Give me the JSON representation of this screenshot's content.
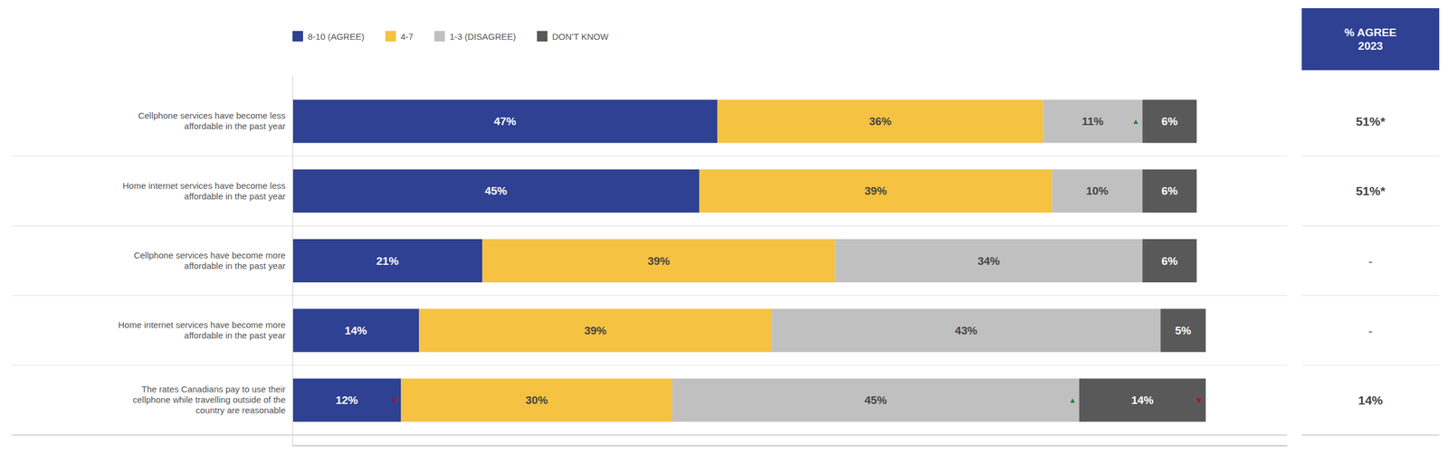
{
  "chart_data": {
    "type": "bar",
    "orientation": "horizontal",
    "stacked": true,
    "data_labels": true,
    "tick_labels": "y",
    "legend": "top",
    "categories": [
      "Cellphone services have become less\naffordable in the past year",
      "Home internet services have become less\naffordable in the past year",
      "Cellphone services have become more\naffordable in the past year",
      "Home internet services have become more\naffordable in the past year",
      "The rates Canadians pay to use their\ncellphone while travelling outside of the\ncountry are reasonable"
    ],
    "series": [
      {
        "name": "8-10 (AGREE)",
        "color": "#2e4192",
        "values": [
          47,
          45,
          21,
          14,
          12
        ],
        "value_labels": [
          "47%",
          "45%",
          "21%",
          "14%",
          "12%"
        ]
      },
      {
        "name": "4-7",
        "color": "#f5c242",
        "values": [
          36,
          39,
          39,
          39,
          30
        ],
        "value_labels": [
          "36%",
          "39%",
          "39%",
          "39%",
          "30%"
        ]
      },
      {
        "name": "1-3 (DISAGREE)",
        "color": "#c0c0c0",
        "values": [
          11,
          10,
          34,
          43,
          45
        ],
        "value_labels": [
          "11%",
          "10%",
          "34%",
          "43%",
          "45%"
        ]
      },
      {
        "name": "DON’T KNOW",
        "color": "#595959",
        "values": [
          6,
          6,
          6,
          5,
          14
        ],
        "value_labels": [
          "6%",
          "6%",
          "6%",
          "5%",
          "14%"
        ]
      }
    ],
    "xlim": [
      0,
      110
    ],
    "annotations": [
      {
        "text": "▲",
        "color": "#2e7d32",
        "series": 2,
        "category": 0
      },
      {
        "text": "▼",
        "color": "#cc0000",
        "series": 0,
        "category": 4
      },
      {
        "text": "▲",
        "color": "#2e7d32",
        "series": 2,
        "category": 4
      },
      {
        "text": "▼",
        "color": "#cc0000",
        "series": 3,
        "category": 4
      }
    ],
    "agree_2023": {
      "title": "% AGREE\n2023",
      "color": "#2e4192",
      "values": [
        51,
        51,
        null,
        null,
        14
      ],
      "value_labels": [
        "51%*",
        "51%*",
        "-",
        "-",
        "14%"
      ]
    }
  }
}
